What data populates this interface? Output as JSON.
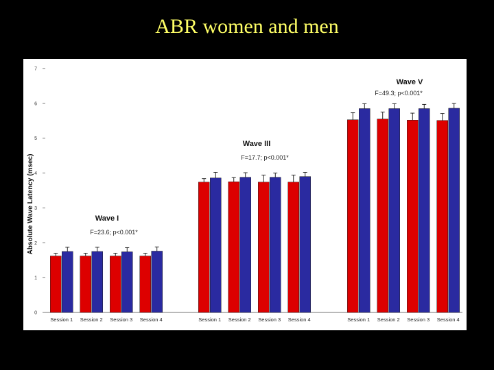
{
  "title": "ABR women and men",
  "chart_data": {
    "type": "bar",
    "ylabel": "Absolute Wave Latency (msec)",
    "ylim": [
      0,
      7
    ],
    "yticks": [
      0,
      1,
      2,
      3,
      4,
      5,
      6,
      7
    ],
    "colors": {
      "series_a": "#dd0000",
      "series_b": "#2a2aa0"
    },
    "groups": [
      {
        "wave_label": "Wave I",
        "stat_label": "F=23.6; p<0.001*",
        "categories": [
          "Session 1",
          "Session 2",
          "Session 3",
          "Session 4"
        ],
        "series": [
          {
            "values": [
              1.62,
              1.62,
              1.62,
              1.62
            ],
            "errors": [
              0.08,
              0.08,
              0.08,
              0.08
            ]
          },
          {
            "values": [
              1.75,
              1.75,
              1.74,
              1.76
            ],
            "errors": [
              0.12,
              0.12,
              0.12,
              0.12
            ]
          }
        ]
      },
      {
        "wave_label": "Wave III",
        "stat_label": "F=17.7; p<0.001*",
        "categories": [
          "Session 1",
          "Session 2",
          "Session 3",
          "Session 4"
        ],
        "series": [
          {
            "values": [
              3.74,
              3.75,
              3.74,
              3.74
            ],
            "errors": [
              0.1,
              0.12,
              0.2,
              0.2
            ]
          },
          {
            "values": [
              3.86,
              3.88,
              3.88,
              3.9
            ],
            "errors": [
              0.16,
              0.13,
              0.12,
              0.12
            ]
          }
        ]
      },
      {
        "wave_label": "Wave V",
        "stat_label": "F=49.3; p<0.001*",
        "categories": [
          "Session 1",
          "Session 2",
          "Session 3",
          "Session 4"
        ],
        "series": [
          {
            "values": [
              5.53,
              5.55,
              5.52,
              5.51
            ],
            "errors": [
              0.2,
              0.2,
              0.2,
              0.2
            ]
          },
          {
            "values": [
              5.85,
              5.85,
              5.85,
              5.86
            ],
            "errors": [
              0.14,
              0.14,
              0.12,
              0.14
            ]
          }
        ]
      }
    ]
  }
}
